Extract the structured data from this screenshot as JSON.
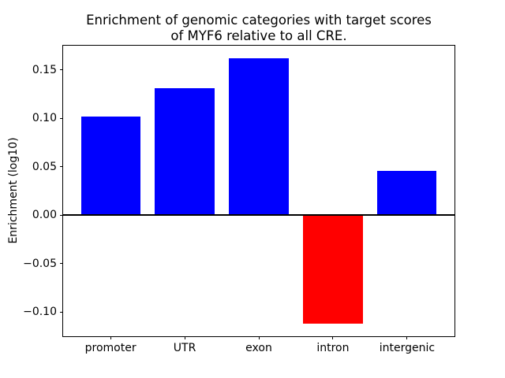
{
  "title": {
    "line1": "Enrichment of genomic categories with target scores",
    "line2": "of MYF6 relative to all CRE."
  },
  "chart_data": {
    "type": "bar",
    "title": "Enrichment of genomic categories with target scores of MYF6 relative to all CRE.",
    "xlabel": "",
    "ylabel": "Enrichment (log10)",
    "categories": [
      "promoter",
      "UTR",
      "exon",
      "intron",
      "intergenic"
    ],
    "values": [
      0.102,
      0.131,
      0.162,
      -0.112,
      0.046
    ],
    "bar_colors": [
      "#0000ff",
      "#0000ff",
      "#0000ff",
      "#ff0000",
      "#0000ff"
    ],
    "colors": {
      "positive": "#0000ff",
      "negative": "#ff0000",
      "axis": "#000000",
      "background": "#ffffff"
    },
    "ylim": [
      -0.125,
      0.175
    ],
    "xlim": [
      -0.64,
      4.64
    ],
    "bar_width": 0.8,
    "yticks": [
      {
        "value": 0.15,
        "label": "0.15"
      },
      {
        "value": 0.1,
        "label": "0.10"
      },
      {
        "value": 0.05,
        "label": "0.05"
      },
      {
        "value": 0.0,
        "label": "0.00"
      },
      {
        "value": -0.05,
        "label": "−0.05"
      },
      {
        "value": -0.1,
        "label": "−0.10"
      }
    ],
    "grid": false,
    "legend": null,
    "zero_line": true
  }
}
